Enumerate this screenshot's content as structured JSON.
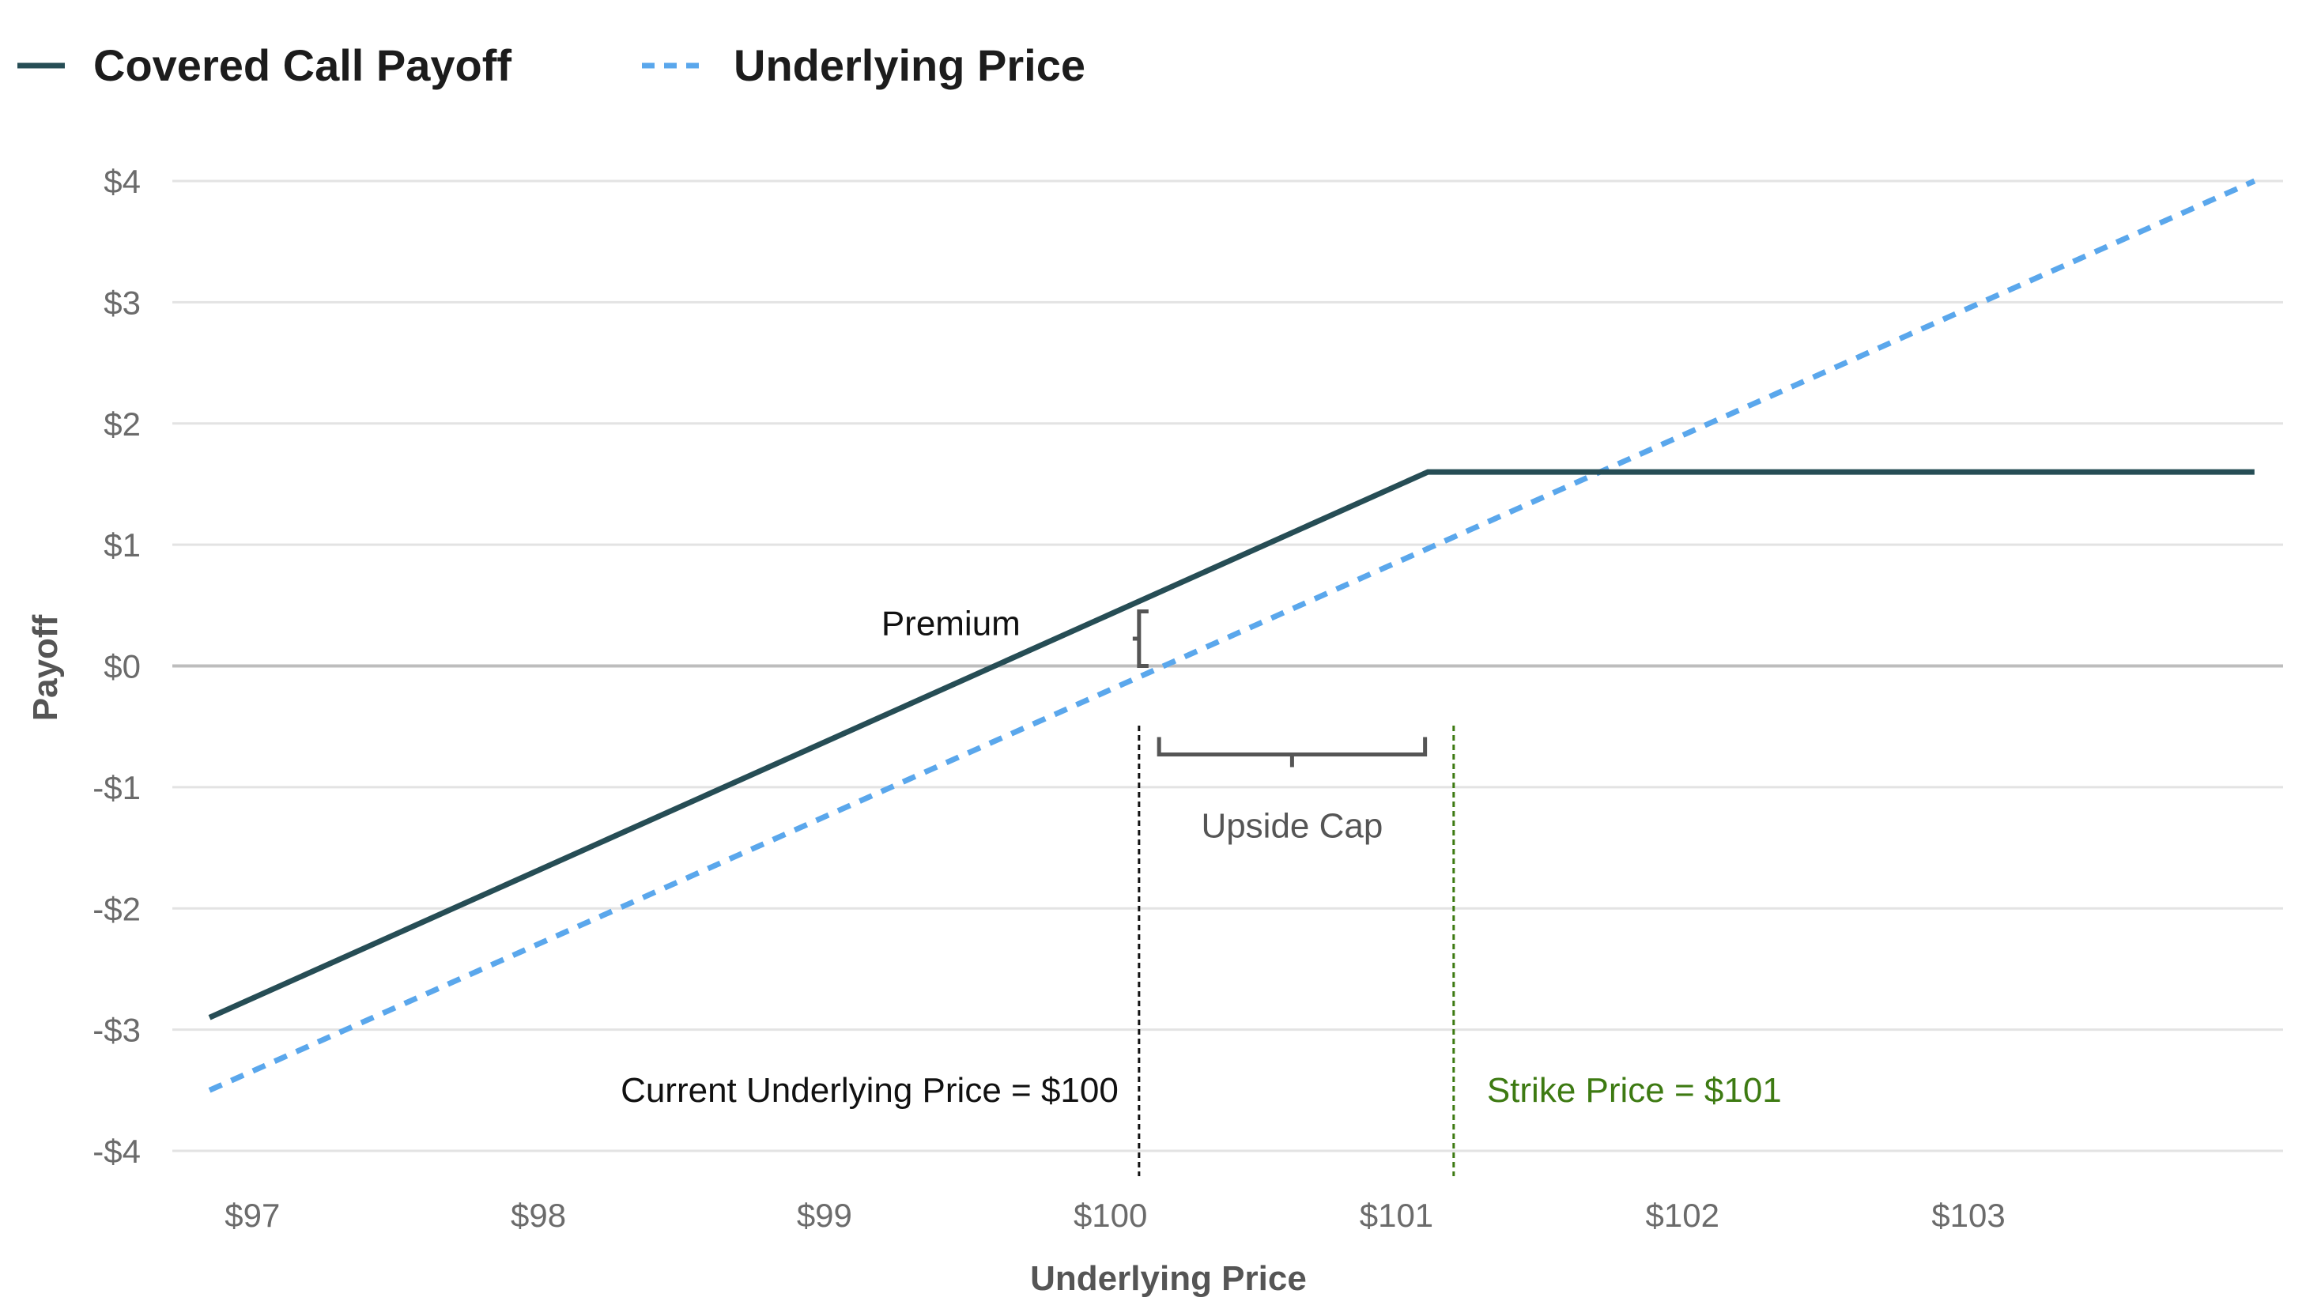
{
  "chart_data": {
    "type": "line",
    "title": "",
    "xlabel": "Underlying Price",
    "ylabel": "Payoff",
    "xlim": [
      96.72,
      104.1
    ],
    "ylim": [
      -4,
      4
    ],
    "x_ticks": [
      {
        "value": 97,
        "label": "$97"
      },
      {
        "value": 98,
        "label": "$98"
      },
      {
        "value": 99,
        "label": "$99"
      },
      {
        "value": 100,
        "label": "$100"
      },
      {
        "value": 101,
        "label": "$101"
      },
      {
        "value": 102,
        "label": "$102"
      },
      {
        "value": 103,
        "label": "$103"
      }
    ],
    "y_ticks": [
      {
        "value": 4,
        "label": "$4"
      },
      {
        "value": 3,
        "label": "$3"
      },
      {
        "value": 2,
        "label": "$2"
      },
      {
        "value": 1,
        "label": "$1"
      },
      {
        "value": 0,
        "label": "$0"
      },
      {
        "value": -1,
        "label": "-$1"
      },
      {
        "value": -2,
        "label": "-$2"
      },
      {
        "value": -3,
        "label": "-$3"
      },
      {
        "value": -4,
        "label": "-$4"
      }
    ],
    "grid": true,
    "legend_position": "top-left",
    "series": [
      {
        "name": "Covered Call Payoff",
        "style": "solid",
        "color": "#264d55",
        "points": [
          {
            "x": 96.85,
            "y": -2.9
          },
          {
            "x": 101.11,
            "y": 1.6
          },
          {
            "x": 104.0,
            "y": 1.6
          }
        ]
      },
      {
        "name": "Underlying Price",
        "style": "dashed",
        "color": "#5aa7ec",
        "points": [
          {
            "x": 96.85,
            "y": -3.5
          },
          {
            "x": 104.0,
            "y": 4.0
          }
        ]
      }
    ],
    "annotations": {
      "premium": {
        "label": "Premium",
        "x": 100.1,
        "y_low": 0.0,
        "y_high": 0.45
      },
      "upside_cap": {
        "label": "Upside Cap",
        "x_start": 100.17,
        "x_end": 101.1,
        "y": -0.73
      },
      "current_price": {
        "label": "Current Underlying Price = $100",
        "x": 100.1,
        "color": "#111111"
      },
      "strike_price": {
        "label": "Strike Price = $101",
        "x": 101.2,
        "color": "#3d7a12"
      }
    }
  }
}
